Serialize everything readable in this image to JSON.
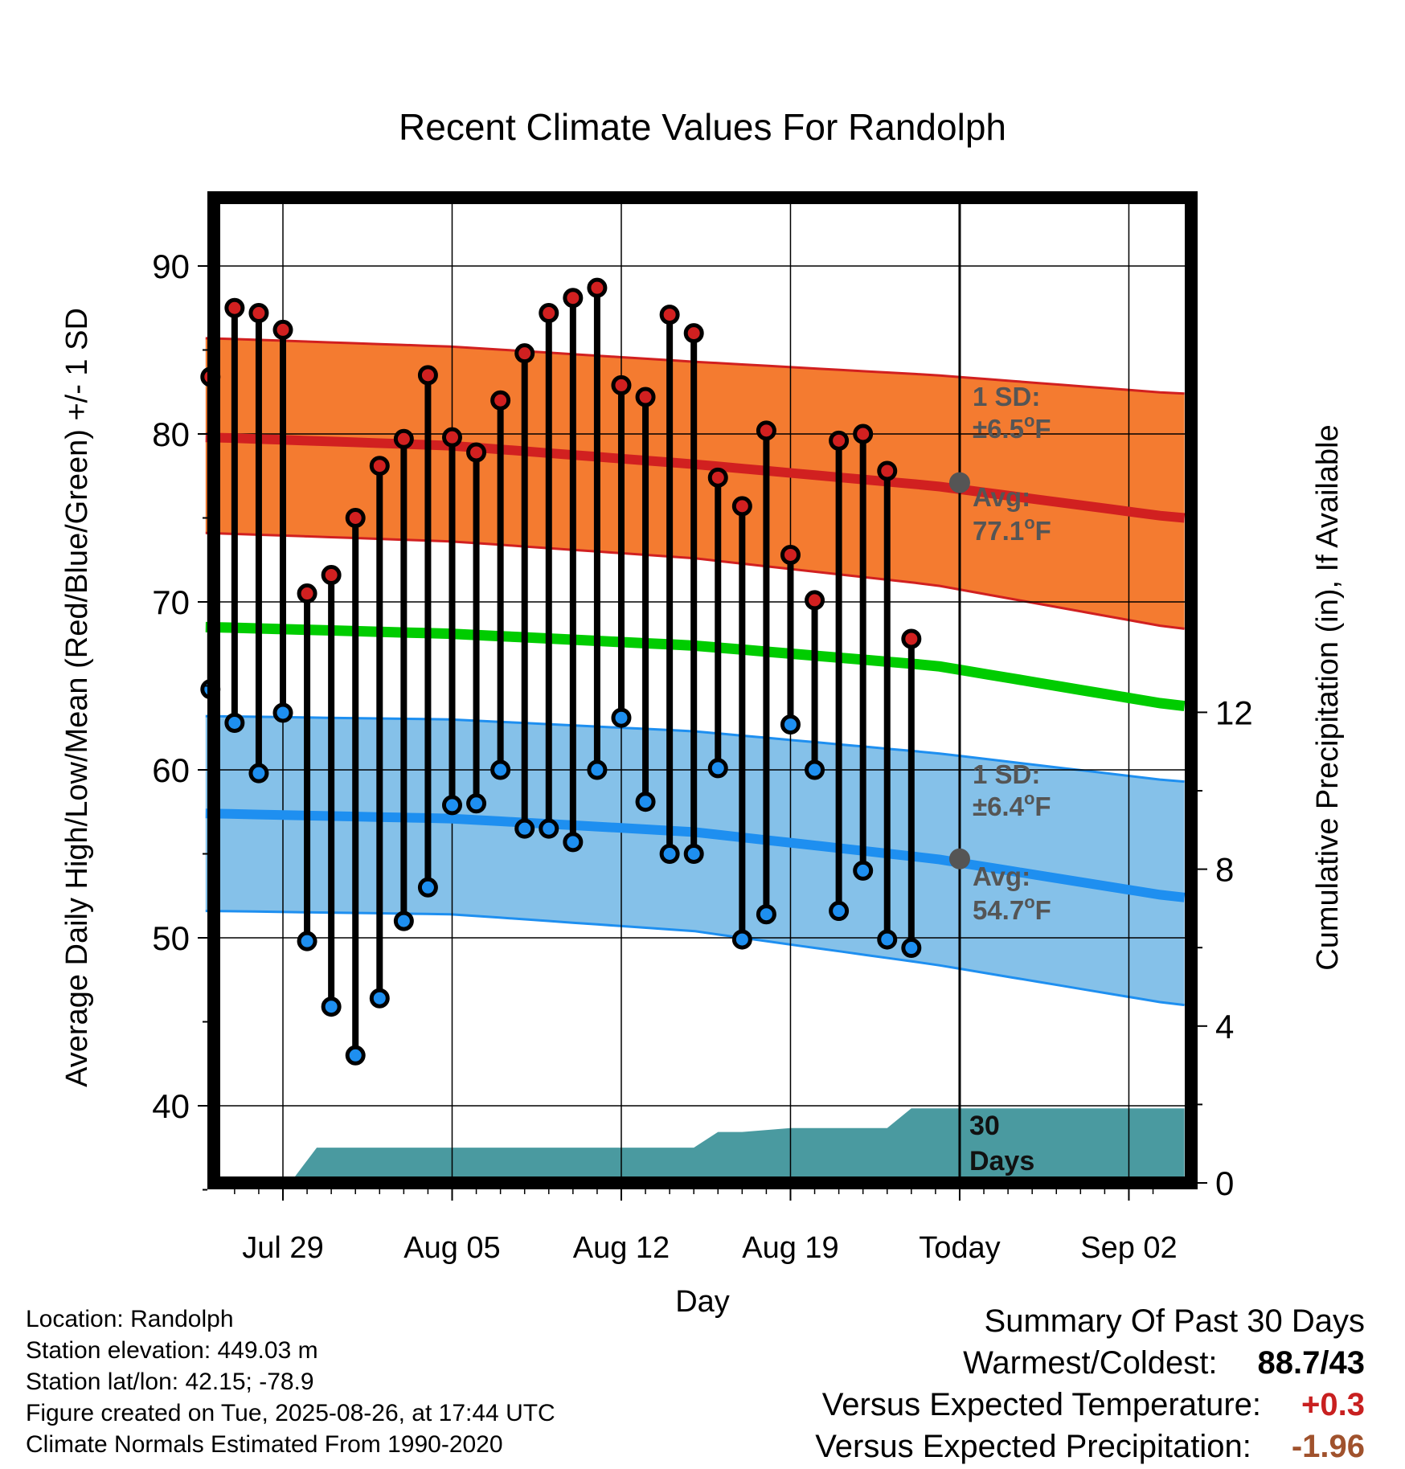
{
  "chart_data": {
    "type": "line",
    "title": "Recent Climate Values For Randolph",
    "xlabel": "Day",
    "ylabel": "Average Daily High/Low/Mean (Red/Blue/Green) +/- 1 SD",
    "y2label": "Cumulative Precipitation (in), If Available",
    "ylim": [
      35,
      94
    ],
    "y2lim": [
      0,
      30
    ],
    "y_ticks": [
      40,
      50,
      60,
      70,
      80,
      90
    ],
    "y2_ticks": [
      0,
      4,
      8,
      12
    ],
    "x_ticks": [
      {
        "day": 4,
        "label": "Jul 29"
      },
      {
        "day": 11,
        "label": "Aug 05"
      },
      {
        "day": 18,
        "label": "Aug 12"
      },
      {
        "day": 25,
        "label": "Aug 19"
      },
      {
        "day": 32,
        "label": "Today"
      },
      {
        "day": 39,
        "label": "Sep 02"
      }
    ],
    "xlim": [
      0.8,
      41.3
    ],
    "grid": true,
    "colors": {
      "high": "#d12020",
      "low": "#1e8ff0",
      "mean": "#00cc00",
      "high_band": "#f47b30",
      "low_band": "#85c1e9",
      "precip": "#4a9aa0",
      "avg_marker": "#555555"
    },
    "daily": {
      "day": [
        1,
        2,
        3,
        4,
        5,
        6,
        7,
        8,
        9,
        10,
        11,
        12,
        13,
        14,
        15,
        16,
        17,
        18,
        19,
        20,
        21,
        22,
        23,
        24,
        25,
        26,
        27,
        28,
        29,
        30,
        31
      ],
      "high": [
        83.4,
        87.5,
        87.2,
        86.2,
        70.5,
        71.6,
        75,
        78.1,
        79.7,
        83.5,
        79.8,
        78.9,
        82,
        84.8,
        87.2,
        88.1,
        88.7,
        82.9,
        82.2,
        87.1,
        86,
        77.4,
        75.7,
        80.2,
        72.8,
        70.1,
        79.6,
        80,
        77.8,
        67.8,
        null
      ],
      "low": [
        64.8,
        62.8,
        59.8,
        63.4,
        49.8,
        45.9,
        43,
        46.4,
        51,
        53,
        57.9,
        58,
        60,
        56.5,
        56.5,
        55.7,
        60,
        63.1,
        58.1,
        55,
        55,
        60.1,
        49.9,
        51.4,
        62.7,
        60,
        51.6,
        54,
        49.9,
        49.4,
        null
      ]
    },
    "normals": {
      "day": [
        1,
        11,
        21,
        31,
        41
      ],
      "high_avg": [
        79.8,
        79.3,
        78.2,
        76.9,
        75
      ],
      "high_sd_upper": [
        85.7,
        85.2,
        84.3,
        83.5,
        82.4
      ],
      "high_sd_lower": [
        74.1,
        73.6,
        72.6,
        71,
        68.4
      ],
      "mean": [
        68.5,
        68.1,
        67.4,
        66.2,
        63.8
      ],
      "low_avg": [
        57.4,
        57.1,
        56.3,
        54.7,
        52.4
      ],
      "low_sd_upper": [
        63.2,
        63,
        62.3,
        61,
        59.3
      ],
      "low_sd_lower": [
        51.6,
        51.4,
        50.4,
        48.4,
        46
      ]
    },
    "precip": {
      "day": [
        0.8,
        4.3,
        5.4,
        11,
        16,
        20,
        21,
        22,
        23,
        25,
        27,
        29,
        30,
        41.3
      ],
      "cum": [
        0,
        0,
        0.9,
        0.9,
        0.9,
        0.9,
        0.9,
        1.3,
        1.3,
        1.4,
        1.4,
        1.4,
        1.9,
        1.9
      ]
    },
    "annotations": {
      "high_sd": {
        "line1": "1 SD:",
        "line2": "±6.5",
        "unit": "F"
      },
      "high_avg": {
        "line1": "Avg:",
        "line2": "77.1",
        "unit": "F",
        "value": 77.1
      },
      "low_sd": {
        "line1": "1 SD:",
        "line2": "±6.4",
        "unit": "F"
      },
      "low_avg": {
        "line1": "Avg:",
        "line2": "54.7",
        "unit": "F",
        "value": 54.7
      },
      "window": {
        "line1": "30",
        "line2": "Days"
      }
    },
    "today_day": 32
  },
  "info": {
    "location": "Location: Randolph",
    "elevation": "Station elevation: 449.03 m",
    "latlon": "Station lat/lon: 42.15; -78.9",
    "created": "Figure created on Tue, 2025-08-26, at 17:44 UTC",
    "normals": "Climate Normals Estimated From 1990-2020"
  },
  "summary": {
    "title": "Summary Of Past 30 Days",
    "warm_cold_label": "Warmest/Coldest:",
    "warm_cold_value": "88.7/43",
    "temp_label": "Versus Expected Temperature:",
    "temp_value": "+0.3",
    "temp_color": "#c82020",
    "precip_label": "Versus Expected Precipitation:",
    "precip_value": "-1.96",
    "precip_color": "#a0522d"
  }
}
